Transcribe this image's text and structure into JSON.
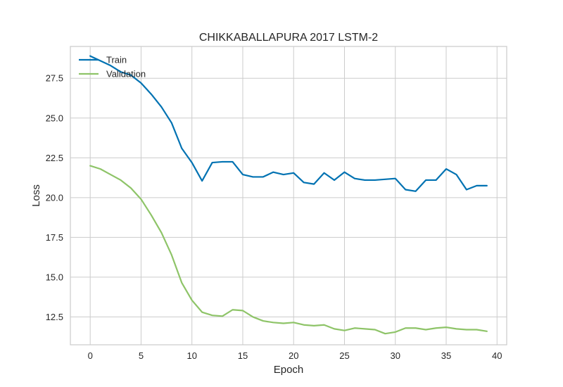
{
  "chart_data": {
    "type": "line",
    "title": "CHIKKABALLAPURA 2017 LSTM-2",
    "xlabel": "Epoch",
    "ylabel": "Loss",
    "xlim": [
      -1.95,
      40.95
    ],
    "ylim": [
      10.75,
      29.5
    ],
    "xticks": [
      0,
      5,
      10,
      15,
      20,
      25,
      30,
      35,
      40
    ],
    "xtick_labels": [
      "0",
      "5",
      "10",
      "15",
      "20",
      "25",
      "30",
      "35",
      "40"
    ],
    "yticks": [
      12.5,
      15.0,
      17.5,
      20.0,
      22.5,
      25.0,
      27.5
    ],
    "ytick_labels": [
      "12.5",
      "15.0",
      "17.5",
      "20.0",
      "22.5",
      "25.0",
      "27.5"
    ],
    "grid": true,
    "legend_position": "upper-left",
    "x": [
      0,
      1,
      2,
      3,
      4,
      5,
      6,
      7,
      8,
      9,
      10,
      11,
      12,
      13,
      14,
      15,
      16,
      17,
      18,
      19,
      20,
      21,
      22,
      23,
      24,
      25,
      26,
      27,
      28,
      29,
      30,
      31,
      32,
      33,
      34,
      35,
      36,
      37,
      38,
      39
    ],
    "series": [
      {
        "name": "Train",
        "color": "#0072B2",
        "values": [
          28.9,
          28.6,
          28.3,
          27.9,
          27.7,
          27.2,
          26.5,
          25.7,
          24.7,
          23.1,
          22.2,
          21.05,
          22.2,
          22.25,
          22.25,
          21.45,
          21.3,
          21.3,
          21.6,
          21.45,
          21.55,
          20.95,
          20.85,
          21.55,
          21.1,
          21.6,
          21.2,
          21.1,
          21.1,
          21.15,
          21.2,
          20.5,
          20.4,
          21.1,
          21.1,
          21.8,
          21.45,
          20.5,
          20.75,
          20.75
        ]
      },
      {
        "name": "Validation",
        "color": "#8EC468",
        "values": [
          22.0,
          21.8,
          21.45,
          21.1,
          20.6,
          19.9,
          18.9,
          17.8,
          16.4,
          14.65,
          13.55,
          12.8,
          12.6,
          12.55,
          12.95,
          12.9,
          12.5,
          12.25,
          12.15,
          12.1,
          12.15,
          12.0,
          11.95,
          12.0,
          11.75,
          11.65,
          11.8,
          11.75,
          11.7,
          11.45,
          11.55,
          11.8,
          11.8,
          11.7,
          11.8,
          11.85,
          11.75,
          11.7,
          11.7,
          11.6
        ]
      }
    ]
  }
}
